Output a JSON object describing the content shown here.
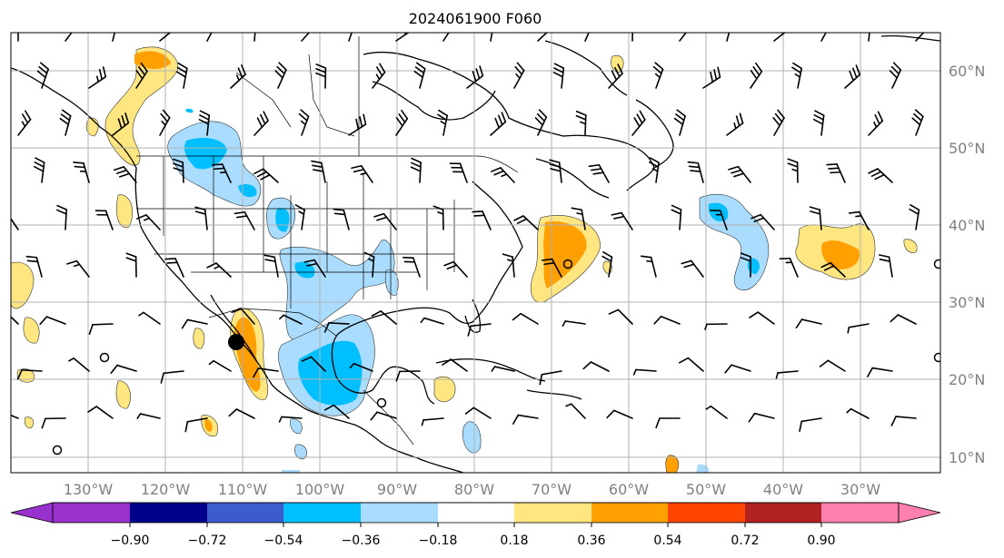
{
  "title": "2024061900 F060",
  "lon_labels": [
    "130°W",
    "120°W",
    "110°W",
    "100°W",
    "90°W",
    "80°W",
    "70°W",
    "60°W",
    "50°W",
    "40°W",
    "30°W"
  ],
  "lat_labels": [
    "60°N",
    "50°N",
    "40°N",
    "30°N",
    "20°N",
    "10°N"
  ],
  "colorbar": {
    "ticks": [
      "−0.90",
      "−0.72",
      "−0.54",
      "−0.36",
      "−0.18",
      "0.18",
      "0.36",
      "0.54",
      "0.72",
      "0.90"
    ],
    "colors": [
      "#9932cc",
      "#00008b",
      "#3c5ccc",
      "#00bfff",
      "#aadcff",
      "#ffffff",
      "#ffe680",
      "#ffa000",
      "#ff4500",
      "#b22222",
      "#ff80b0"
    ]
  },
  "map": {
    "projection": "plate-carree",
    "lon_range": [
      -137,
      -24
    ],
    "lat_range": [
      8,
      65
    ],
    "gridlines": true
  }
}
